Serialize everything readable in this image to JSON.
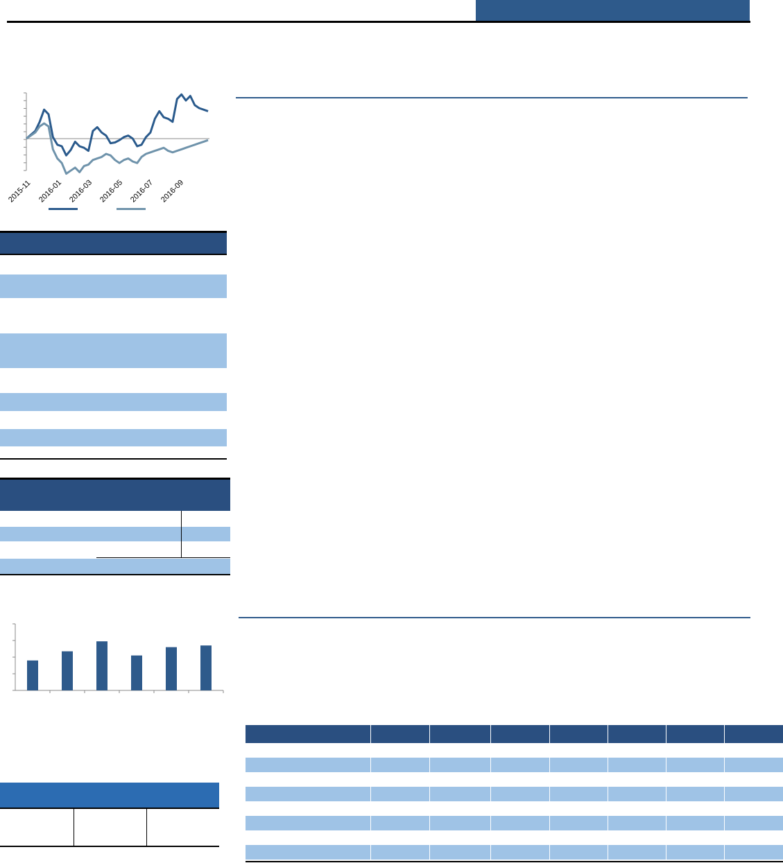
{
  "header": {
    "tab_color": "#2e5a8b"
  },
  "line_chart": {
    "chart_data": {
      "type": "line",
      "x_ticks": [
        "2015-11",
        "2016-01",
        "2016-03",
        "2016-05",
        "2016-07",
        "2016-09"
      ],
      "series": [
        {
          "color": "#2a5a8c",
          "values": [
            0.0,
            0.5,
            1.0,
            2.2,
            3.8,
            3.2,
            0.2,
            -0.8,
            -1.0,
            -2.2,
            -1.5,
            -0.4,
            -1.0,
            -1.2,
            -1.6,
            1.0,
            1.5,
            0.8,
            0.4,
            -0.6,
            -0.5,
            -0.2,
            0.2,
            0.4,
            0.0,
            -1.0,
            -0.8,
            0.2,
            0.8,
            2.6,
            3.6,
            2.8,
            2.6,
            2.2,
            5.2,
            5.8,
            5.0,
            5.6,
            4.4,
            4.0,
            3.8,
            3.6
          ]
        },
        {
          "color": "#6f93ab",
          "values": [
            0.0,
            0.4,
            0.8,
            1.6,
            2.0,
            1.6,
            -1.4,
            -2.6,
            -3.2,
            -4.6,
            -4.2,
            -3.8,
            -4.4,
            -3.6,
            -3.4,
            -2.8,
            -2.6,
            -2.4,
            -2.0,
            -2.2,
            -2.8,
            -3.2,
            -2.8,
            -2.6,
            -3.0,
            -3.2,
            -2.4,
            -2.0,
            -1.8,
            -1.6,
            -1.4,
            -1.2,
            -1.6,
            -1.8,
            -1.6,
            -1.4,
            -1.2,
            -1.0,
            -0.8,
            -0.6,
            -0.4,
            -0.2
          ]
        }
      ]
    }
  },
  "bar_chart": {
    "chart_data": {
      "type": "bar",
      "values": [
        1.8,
        2.35,
        2.95,
        2.1,
        2.6,
        2.7
      ],
      "ylim": [
        0,
        4
      ]
    }
  },
  "big_table": {
    "columns": 8,
    "rows": 8
  }
}
